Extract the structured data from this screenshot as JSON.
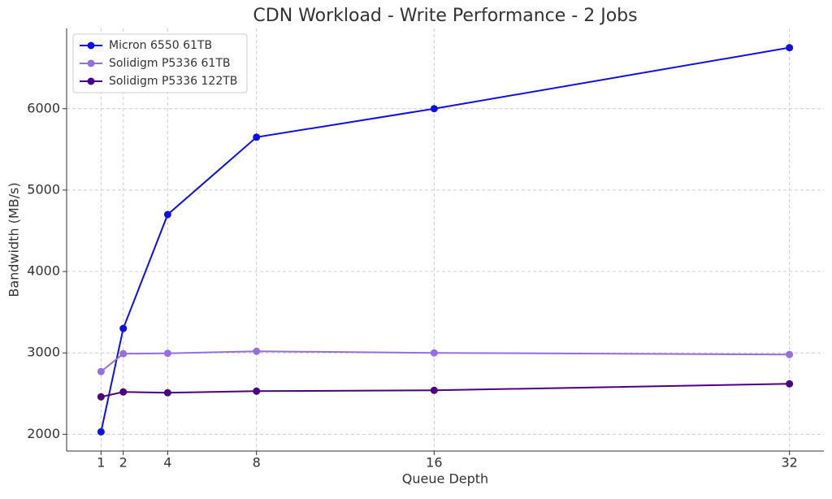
{
  "chart_data": {
    "type": "line",
    "title": "CDN Workload - Write Performance - 2 Jobs",
    "x_label": "Queue Depth",
    "y_label": "Bandwidth (MB/s)",
    "x": [
      1,
      2,
      4,
      8,
      16,
      32
    ],
    "series": [
      {
        "name": "Micron 6550 61TB",
        "color": "#1010e0",
        "values": [
          2030,
          3300,
          4700,
          5650,
          6000,
          6750
        ]
      },
      {
        "name": "Solidigm P5336 61TB",
        "color": "#9370db",
        "values": [
          2770,
          2990,
          2995,
          3020,
          3000,
          2980
        ]
      },
      {
        "name": "Solidigm P5336 122TB",
        "color": "#4b0082",
        "values": [
          2460,
          2520,
          2510,
          2530,
          2540,
          2620
        ]
      }
    ],
    "xlim": [
      -0.55,
      33.55
    ],
    "xticks": [
      1,
      2,
      4,
      8,
      16,
      32
    ],
    "ylim": [
      1794,
      6986
    ],
    "yticks": [
      2000,
      3000,
      4000,
      5000,
      6000
    ],
    "grid": true,
    "legend": "upper left"
  }
}
